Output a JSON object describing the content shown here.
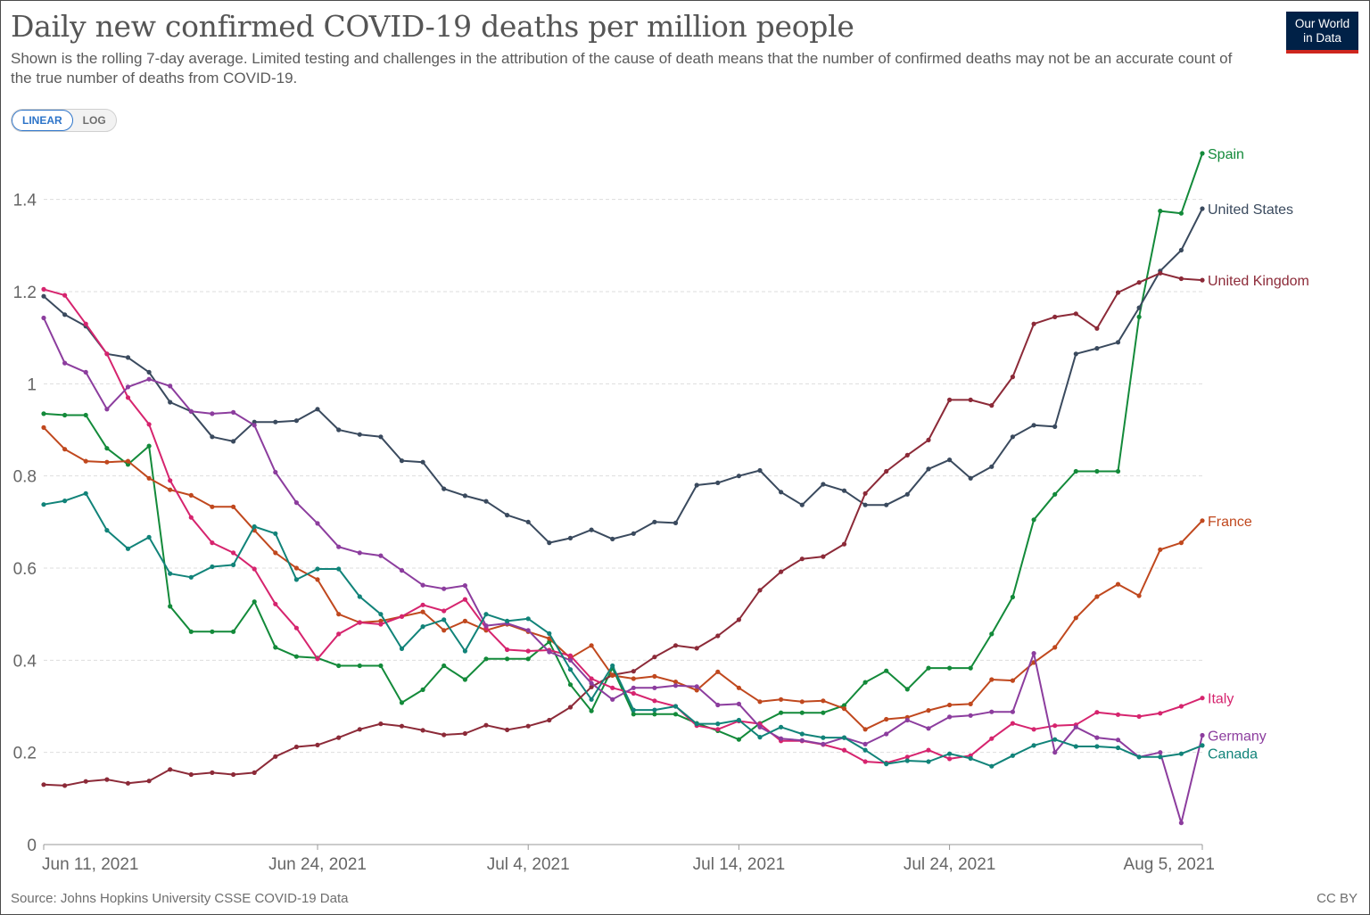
{
  "header": {
    "title": "Daily new confirmed COVID-19 deaths per million people",
    "subtitle": "Shown is the rolling 7-day average. Limited testing and challenges in the attribution of the cause of death means that the number of confirmed deaths may not be an accurate count of the true number of deaths from COVID-19.",
    "logo_line1": "Our World",
    "logo_line2": "in Data"
  },
  "scale_toggle": {
    "linear_label": "LINEAR",
    "log_label": "LOG",
    "selected": "LINEAR"
  },
  "footer": {
    "source": "Source: Johns Hopkins University CSSE COVID-19 Data",
    "license": "CC BY"
  },
  "chart_data": {
    "type": "line",
    "title": "Daily new confirmed COVID-19 deaths per million people",
    "x_start": "2021-06-11",
    "x_end": "2021-08-05",
    "x_ticks": [
      {
        "date": "2021-06-11",
        "label": "Jun 11, 2021"
      },
      {
        "date": "2021-06-24",
        "label": "Jun 24, 2021"
      },
      {
        "date": "2021-07-04",
        "label": "Jul 4, 2021"
      },
      {
        "date": "2021-07-14",
        "label": "Jul 14, 2021"
      },
      {
        "date": "2021-07-24",
        "label": "Jul 24, 2021"
      },
      {
        "date": "2021-08-05",
        "label": "Aug 5, 2021"
      }
    ],
    "ylim": [
      0,
      1.5
    ],
    "y_ticks": [
      {
        "value": 0,
        "label": "0"
      },
      {
        "value": 0.2,
        "label": "0.2"
      },
      {
        "value": 0.4,
        "label": "0.4"
      },
      {
        "value": 0.6,
        "label": "0.6"
      },
      {
        "value": 0.8,
        "label": "0.8"
      },
      {
        "value": 1,
        "label": "1"
      },
      {
        "value": 1.2,
        "label": "1.2"
      },
      {
        "value": 1.4,
        "label": "1.4"
      }
    ],
    "grid": true,
    "legend": "right-of-lines",
    "series": [
      {
        "name": "Spain",
        "color": "#138a3a",
        "values": [
          0.935,
          0.932,
          0.932,
          0.86,
          0.825,
          0.865,
          0.517,
          0.462,
          0.462,
          0.462,
          0.527,
          0.428,
          0.408,
          0.405,
          0.388,
          0.388,
          0.388,
          0.308,
          0.336,
          0.388,
          0.358,
          0.403,
          0.403,
          0.403,
          0.44,
          0.347,
          0.29,
          0.383,
          0.283,
          0.283,
          0.283,
          0.263,
          0.247,
          0.228,
          0.263,
          0.286,
          0.286,
          0.286,
          0.302,
          0.352,
          0.377,
          0.337,
          0.383,
          0.383,
          0.383,
          0.457,
          0.537,
          0.705,
          0.76,
          0.81,
          0.81,
          0.81,
          1.145,
          1.375,
          1.37,
          1.5
        ]
      },
      {
        "name": "United States",
        "color": "#3a4a5e",
        "values": [
          1.19,
          1.15,
          1.125,
          1.065,
          1.057,
          1.025,
          0.96,
          0.94,
          0.885,
          0.875,
          0.917,
          0.917,
          0.92,
          0.945,
          0.9,
          0.89,
          0.885,
          0.833,
          0.83,
          0.772,
          0.757,
          0.745,
          0.715,
          0.7,
          0.655,
          0.665,
          0.683,
          0.663,
          0.675,
          0.7,
          0.698,
          0.78,
          0.785,
          0.8,
          0.812,
          0.765,
          0.737,
          0.782,
          0.768,
          0.737,
          0.737,
          0.76,
          0.815,
          0.835,
          0.795,
          0.82,
          0.885,
          0.91,
          0.907,
          1.065,
          1.077,
          1.09,
          1.165,
          1.245,
          1.29,
          1.38
        ]
      },
      {
        "name": "United Kingdom",
        "color": "#8c2a38",
        "values": [
          0.13,
          0.128,
          0.137,
          0.141,
          0.133,
          0.138,
          0.163,
          0.152,
          0.156,
          0.152,
          0.156,
          0.191,
          0.212,
          0.216,
          0.232,
          0.25,
          0.262,
          0.257,
          0.248,
          0.238,
          0.241,
          0.259,
          0.249,
          0.257,
          0.27,
          0.298,
          0.342,
          0.368,
          0.376,
          0.407,
          0.432,
          0.426,
          0.453,
          0.488,
          0.552,
          0.592,
          0.62,
          0.625,
          0.652,
          0.762,
          0.81,
          0.845,
          0.878,
          0.965,
          0.965,
          0.953,
          1.015,
          1.13,
          1.145,
          1.152,
          1.12,
          1.198,
          1.22,
          1.24,
          1.228,
          1.225
        ]
      },
      {
        "name": "France",
        "color": "#c0481e",
        "values": [
          0.905,
          0.858,
          0.832,
          0.83,
          0.832,
          0.795,
          0.77,
          0.758,
          0.733,
          0.733,
          0.682,
          0.633,
          0.6,
          0.575,
          0.5,
          0.482,
          0.485,
          0.495,
          0.505,
          0.465,
          0.485,
          0.465,
          0.478,
          0.462,
          0.447,
          0.405,
          0.432,
          0.367,
          0.36,
          0.365,
          0.353,
          0.335,
          0.375,
          0.34,
          0.31,
          0.315,
          0.31,
          0.312,
          0.295,
          0.25,
          0.272,
          0.276,
          0.291,
          0.303,
          0.305,
          0.358,
          0.356,
          0.395,
          0.428,
          0.492,
          0.538,
          0.565,
          0.54,
          0.64,
          0.655,
          0.703
        ]
      },
      {
        "name": "Italy",
        "color": "#d6246e",
        "values": [
          1.205,
          1.192,
          1.13,
          1.065,
          0.97,
          0.912,
          0.79,
          0.71,
          0.655,
          0.633,
          0.598,
          0.522,
          0.47,
          0.403,
          0.457,
          0.482,
          0.478,
          0.495,
          0.52,
          0.507,
          0.532,
          0.47,
          0.423,
          0.42,
          0.422,
          0.41,
          0.36,
          0.34,
          0.328,
          0.312,
          0.3,
          0.258,
          0.25,
          0.268,
          0.262,
          0.225,
          0.225,
          0.217,
          0.205,
          0.18,
          0.177,
          0.19,
          0.205,
          0.186,
          0.193,
          0.23,
          0.263,
          0.25,
          0.258,
          0.26,
          0.287,
          0.282,
          0.278,
          0.285,
          0.3,
          0.318
        ]
      },
      {
        "name": "Germany",
        "color": "#8c3d9e",
        "values": [
          1.143,
          1.045,
          1.025,
          0.945,
          0.993,
          1.01,
          0.995,
          0.94,
          0.935,
          0.938,
          0.91,
          0.808,
          0.742,
          0.697,
          0.646,
          0.633,
          0.627,
          0.595,
          0.563,
          0.555,
          0.562,
          0.475,
          0.48,
          0.465,
          0.418,
          0.4,
          0.35,
          0.315,
          0.34,
          0.34,
          0.345,
          0.343,
          0.303,
          0.305,
          0.255,
          0.23,
          0.226,
          0.218,
          0.232,
          0.218,
          0.24,
          0.27,
          0.252,
          0.277,
          0.28,
          0.288,
          0.288,
          0.415,
          0.2,
          0.255,
          0.232,
          0.227,
          0.19,
          0.2,
          0.047,
          0.237
        ]
      },
      {
        "name": "Canada",
        "color": "#118379",
        "values": [
          0.738,
          0.746,
          0.762,
          0.682,
          0.642,
          0.667,
          0.588,
          0.58,
          0.603,
          0.607,
          0.69,
          0.675,
          0.575,
          0.598,
          0.598,
          0.538,
          0.5,
          0.425,
          0.473,
          0.488,
          0.42,
          0.5,
          0.485,
          0.49,
          0.458,
          0.38,
          0.315,
          0.388,
          0.292,
          0.292,
          0.3,
          0.262,
          0.262,
          0.27,
          0.233,
          0.255,
          0.24,
          0.232,
          0.232,
          0.205,
          0.175,
          0.182,
          0.18,
          0.197,
          0.187,
          0.17,
          0.193,
          0.215,
          0.228,
          0.213,
          0.213,
          0.21,
          0.19,
          0.19,
          0.197,
          0.215
        ]
      }
    ]
  }
}
